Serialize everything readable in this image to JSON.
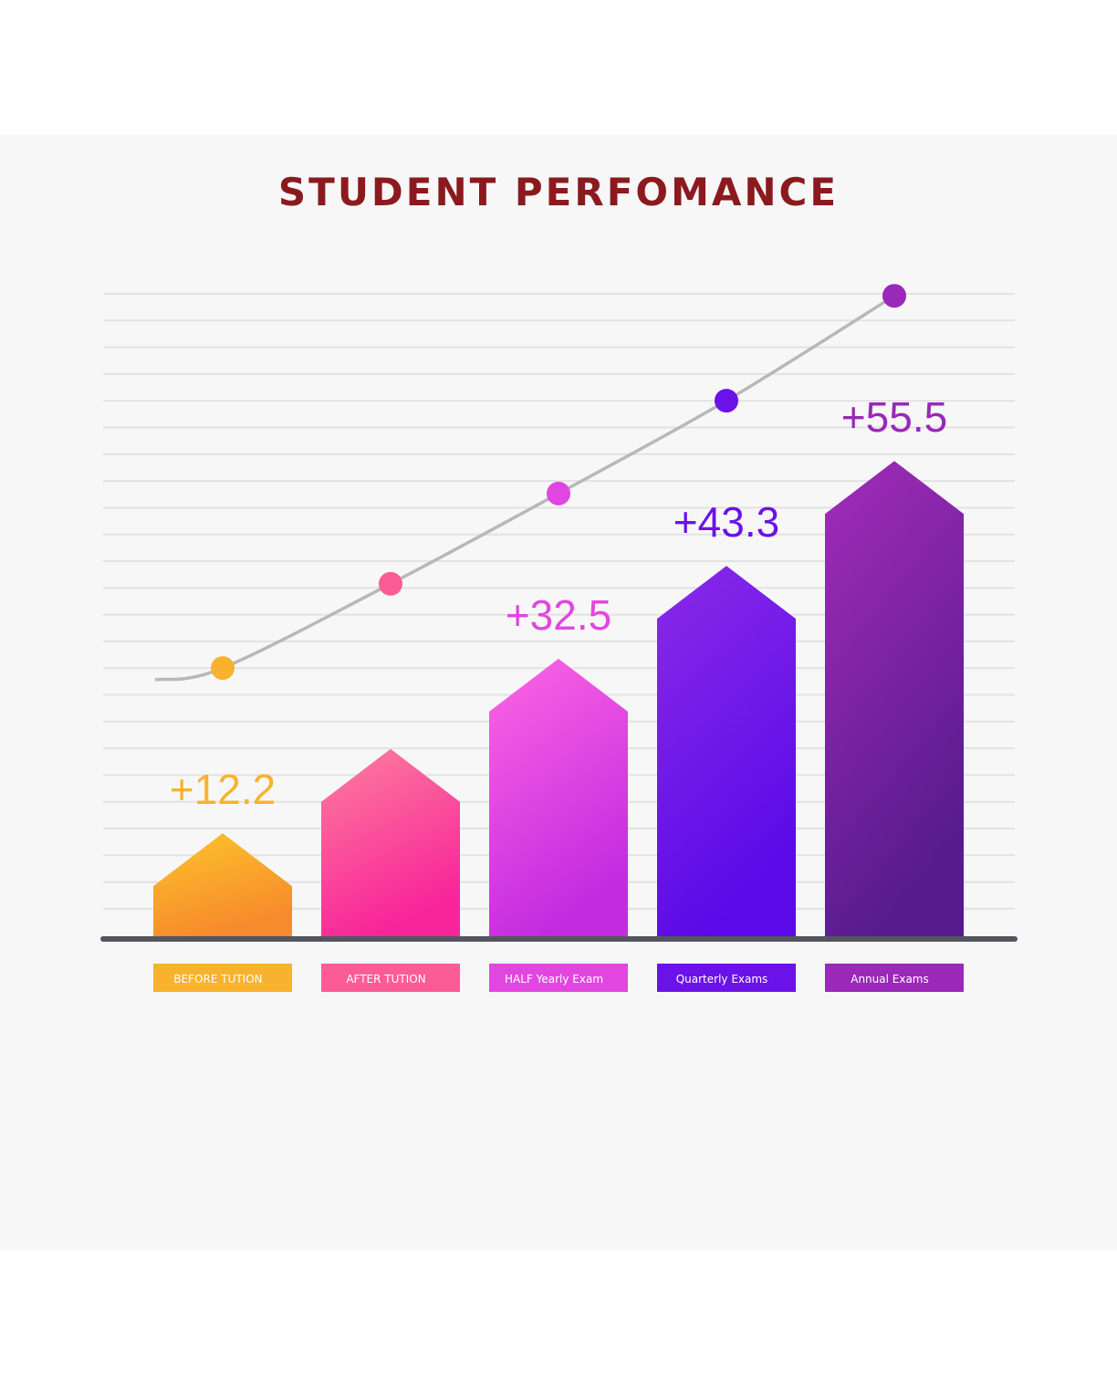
{
  "chart_data": {
    "type": "bar",
    "title": "STUDENT PERFOMANCE",
    "categories": [
      "BEFORE TUTION",
      "AFTER TUTION",
      "HALF Yearly Exam",
      "Quarterly Exams",
      "Annual Exams"
    ],
    "values": [
      12.2,
      22.0,
      32.5,
      43.3,
      55.5
    ],
    "value_labels": [
      "+12.2",
      "",
      "+32.5",
      "+43.3",
      "+55.5"
    ],
    "trend_line": [
      {
        "x": 0
      },
      {
        "x": 1
      },
      {
        "x": 2
      },
      {
        "x": 3
      },
      {
        "x": 4
      }
    ],
    "colors": {
      "title": "#8b1a1f",
      "bars_top": [
        "#fcc42c",
        "#fd7f9c",
        "#fd66e3",
        "#8a2ae8",
        "#a32cb8"
      ],
      "bars_bottom": [
        "#f78a2c",
        "#f8249a",
        "#c42be0",
        "#5a0ae8",
        "#571b8f"
      ],
      "labels": [
        "#f8b22e",
        "#fb5c96",
        "#e246e0",
        "#6b12e8",
        "#9a28b8"
      ],
      "axis": "#555560",
      "grid": "#e2e2e2",
      "trend": "#b8b8b8"
    },
    "grid": true
  }
}
